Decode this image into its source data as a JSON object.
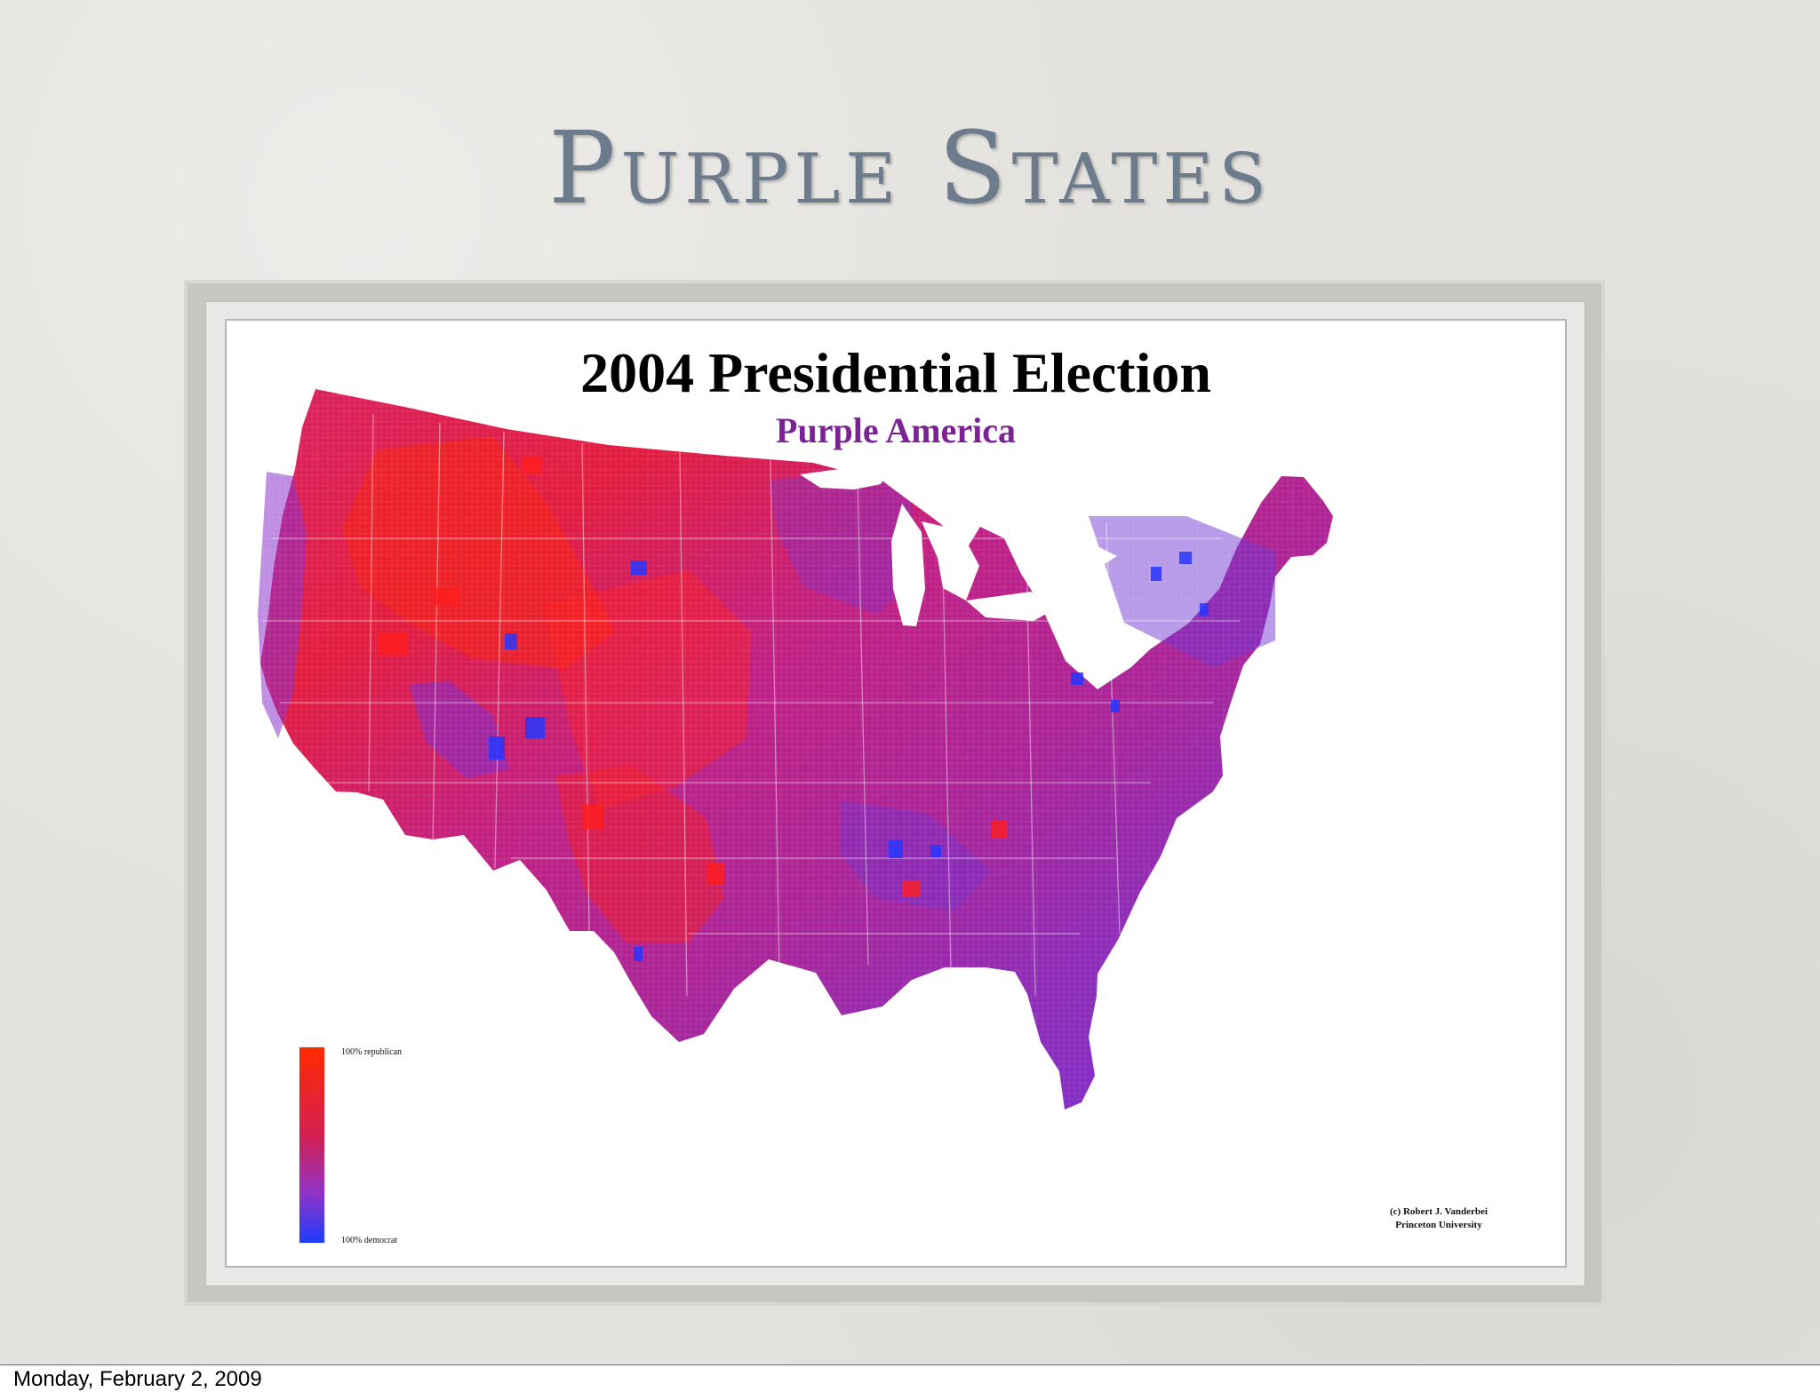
{
  "slide": {
    "title": "Purple States",
    "footer_date": "Monday, February 2, 2009"
  },
  "map": {
    "title": "2004 Presidential Election",
    "subtitle": "Purple America",
    "legend": {
      "top_label": "100% republican",
      "bottom_label": "100% democrat",
      "top_color": "#ff2a00",
      "bottom_color": "#1d3dff"
    },
    "credit_line1": "(c) Robert J. Vanderbei",
    "credit_line2": "Princeton University",
    "palette": {
      "republican": "#ff1f1f",
      "mixed": "#a22aa8",
      "democrat": "#2b31ff",
      "ocean": "#ffffff"
    }
  }
}
